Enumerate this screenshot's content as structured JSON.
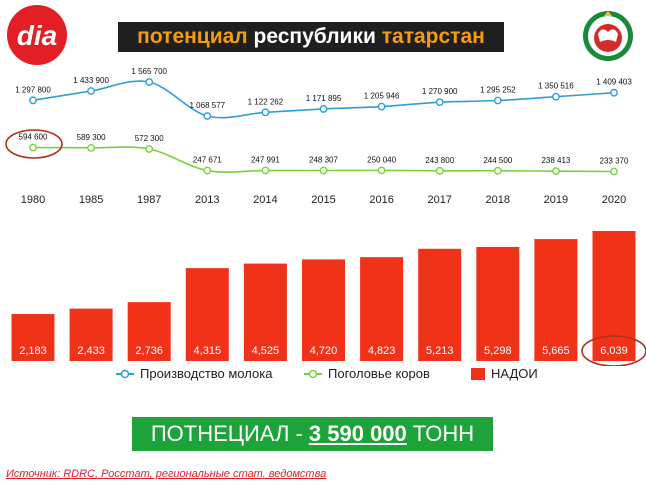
{
  "header": {
    "logo_text": "dia",
    "title_parts": [
      "потенциал",
      "республики",
      "татарстан"
    ]
  },
  "colors": {
    "brand_red": "#e31e24",
    "milk_line": "#2e9fd6",
    "cows_line": "#7bd13d",
    "bars": "#f03318",
    "highlight_circle": "#b1301d",
    "banner": "#1ea33b"
  },
  "chart_data": {
    "type": "bar+line",
    "categories": [
      "1980",
      "1985",
      "1987",
      "2013",
      "2014",
      "2015",
      "2016",
      "2017",
      "2018",
      "2019",
      "2020"
    ],
    "series": [
      {
        "name": "Производство молока",
        "type": "line",
        "values": [
          1297800,
          1433900,
          1565700,
          1068577,
          1122262,
          1171895,
          1205946,
          1270900,
          1295252,
          1350516,
          1409403
        ],
        "labels": [
          "1 297 800",
          "1 433 900",
          "1 565 700",
          "1 068 577",
          "1 122 262",
          "1 171 895",
          "1 205 946",
          "1 270 900",
          "1 295 252",
          "1 350 516",
          "1 409 403"
        ]
      },
      {
        "name": "Поголовье коров",
        "type": "line",
        "values": [
          594600,
          589300,
          572300,
          247671,
          247991,
          248307,
          250040,
          243800,
          244500,
          238413,
          233370
        ],
        "labels": [
          "594 600",
          "589 300",
          "572 300",
          "247 671",
          "247 991",
          "248 307",
          "250 040",
          "243 800",
          "244 500",
          "238 413",
          "233 370"
        ]
      },
      {
        "name": "НАДОИ",
        "type": "bar",
        "values": [
          2183,
          2433,
          2736,
          4315,
          4525,
          4720,
          4823,
          5213,
          5298,
          5665,
          6039
        ],
        "labels": [
          "2,183",
          "2,433",
          "2,736",
          "4,315",
          "4,525",
          "4,720",
          "4,823",
          "5,213",
          "5,298",
          "5,665",
          "6,039"
        ]
      }
    ],
    "highlighted": [
      "594 600",
      "6,039"
    ],
    "legend_position": "bottom",
    "grid": false
  },
  "banner": {
    "prefix": "ПОТНЕЦИАЛ -",
    "value": "3 590 000",
    "suffix": "ТОНН"
  },
  "source": "Источник: RDRC, Росстат, региональные стат. ведомства"
}
